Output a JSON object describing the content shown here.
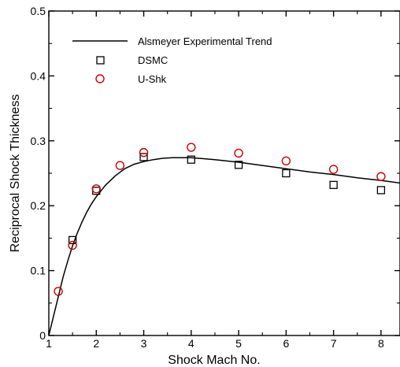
{
  "chart_data": {
    "type": "scatter",
    "title": "",
    "xlabel": "Shock Mach No.",
    "ylabel": "Reciprocal Shock Thickness",
    "xlim": [
      1,
      8.4
    ],
    "ylim": [
      0,
      0.5
    ],
    "x_ticks": [
      1,
      2,
      3,
      4,
      5,
      6,
      7,
      8
    ],
    "y_ticks": [
      0,
      0.1,
      0.2,
      0.3,
      0.4,
      0.5
    ],
    "x_tick_labels": [
      "1",
      "2",
      "3",
      "4",
      "5",
      "6",
      "7",
      "8"
    ],
    "y_tick_labels": [
      "0",
      "0.1",
      "0.2",
      "0.3",
      "0.4",
      "0.5"
    ],
    "grid": false,
    "legend_position": "top-left",
    "series": [
      {
        "name": "Alsmeyer Experimental Trend",
        "kind": "line",
        "color": "#000000",
        "x": [
          1.0,
          1.1,
          1.2,
          1.3,
          1.4,
          1.5,
          1.6,
          1.7,
          1.8,
          1.9,
          2.0,
          2.2,
          2.4,
          2.6,
          2.8,
          3.0,
          3.2,
          3.4,
          3.6,
          3.8,
          4.0,
          4.5,
          5.0,
          5.5,
          6.0,
          6.5,
          7.0,
          7.5,
          8.0,
          8.4
        ],
        "y": [
          0.0,
          0.03,
          0.06,
          0.09,
          0.115,
          0.138,
          0.158,
          0.175,
          0.19,
          0.203,
          0.214,
          0.232,
          0.246,
          0.257,
          0.264,
          0.268,
          0.271,
          0.273,
          0.274,
          0.274,
          0.274,
          0.271,
          0.267,
          0.262,
          0.257,
          0.252,
          0.248,
          0.243,
          0.239,
          0.235
        ]
      },
      {
        "name": "DSMC",
        "kind": "marker",
        "marker": "square",
        "color": "#000000",
        "x": [
          1.5,
          2.0,
          3.0,
          4.0,
          5.0,
          6.0,
          7.0,
          8.0
        ],
        "y": [
          0.147,
          0.223,
          0.275,
          0.271,
          0.263,
          0.25,
          0.232,
          0.224
        ]
      },
      {
        "name": "U-Shk",
        "kind": "marker",
        "marker": "circle",
        "color": "#cc0000",
        "x": [
          1.2,
          1.5,
          2.0,
          2.5,
          3.0,
          4.0,
          5.0,
          6.0,
          7.0,
          8.0
        ],
        "y": [
          0.068,
          0.139,
          0.226,
          0.262,
          0.282,
          0.29,
          0.281,
          0.269,
          0.256,
          0.245
        ]
      }
    ]
  }
}
